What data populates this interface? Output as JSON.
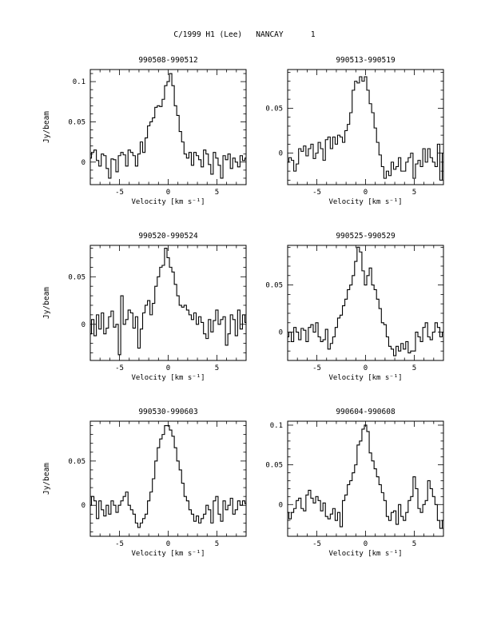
{
  "figure": {
    "title": "C/1999 H1 (Lee)   NANCAY      1",
    "ylabel": "Jy/beam"
  },
  "chart_data": [
    {
      "type": "line",
      "title": "990508-990512",
      "xlabel": "Velocity [km s⁻¹]",
      "ylabel": "Jy/beam",
      "xlim": [
        -8,
        8
      ],
      "ylim": [
        -0.028,
        0.115
      ],
      "xticks": [
        -5,
        0,
        5
      ],
      "yticks": [
        0,
        0.05,
        0.1
      ],
      "ytick_labels": [
        "0",
        "0.05",
        "0.1"
      ],
      "x": [
        -8,
        -7.75,
        -7.5,
        -7.25,
        -7,
        -6.75,
        -6.5,
        -6.25,
        -6,
        -5.75,
        -5.5,
        -5.25,
        -5,
        -4.75,
        -4.5,
        -4.25,
        -4,
        -3.75,
        -3.5,
        -3.25,
        -3,
        -2.75,
        -2.5,
        -2.25,
        -2,
        -1.75,
        -1.5,
        -1.25,
        -1,
        -0.75,
        -0.5,
        -0.25,
        0,
        0.25,
        0.5,
        0.75,
        1,
        1.25,
        1.5,
        1.75,
        2,
        2.25,
        2.5,
        2.75,
        3,
        3.25,
        3.5,
        3.75,
        4,
        4.25,
        4.5,
        4.75,
        5,
        5.25,
        5.5,
        5.75,
        6,
        6.25,
        6.5,
        6.75,
        7,
        7.25,
        7.5,
        7.75,
        8
      ],
      "values": [
        0.005,
        0.012,
        0.015,
        0.002,
        -0.005,
        0.01,
        0.008,
        -0.008,
        -0.02,
        0.004,
        0.003,
        -0.012,
        0.008,
        0.012,
        0.009,
        -0.005,
        0.015,
        0.012,
        0.008,
        -0.005,
        0.01,
        0.025,
        0.012,
        0.03,
        0.045,
        0.05,
        0.055,
        0.068,
        0.07,
        0.069,
        0.078,
        0.095,
        0.1,
        0.11,
        0.095,
        0.07,
        0.058,
        0.038,
        0.025,
        0.01,
        0.005,
        0.012,
        -0.004,
        0.012,
        0.008,
        0.003,
        -0.006,
        0.015,
        0.01,
        -0.003,
        -0.015,
        0.012,
        0.005,
        -0.004,
        -0.02,
        0.008,
        0.003,
        0.01,
        -0.008,
        0.005,
        0.0,
        -0.006,
        0.008,
        0.002,
        0.005
      ]
    },
    {
      "type": "line",
      "title": "990513-990519",
      "xlabel": "Velocity [km s⁻¹]",
      "ylabel": "",
      "xlim": [
        -8,
        8
      ],
      "ylim": [
        -0.035,
        0.093
      ],
      "xticks": [
        -5,
        0,
        5
      ],
      "yticks": [
        0,
        0.05
      ],
      "ytick_labels": [
        "0",
        "0.05"
      ],
      "x": [
        -8,
        -7.75,
        -7.5,
        -7.25,
        -7,
        -6.75,
        -6.5,
        -6.25,
        -6,
        -5.75,
        -5.5,
        -5.25,
        -5,
        -4.75,
        -4.5,
        -4.25,
        -4,
        -3.75,
        -3.5,
        -3.25,
        -3,
        -2.75,
        -2.5,
        -2.25,
        -2,
        -1.75,
        -1.5,
        -1.25,
        -1,
        -0.75,
        -0.5,
        -0.25,
        0,
        0.25,
        0.5,
        0.75,
        1,
        1.25,
        1.5,
        1.75,
        2,
        2.25,
        2.5,
        2.75,
        3,
        3.25,
        3.5,
        3.75,
        4,
        4.25,
        4.5,
        4.75,
        5,
        5.25,
        5.5,
        5.75,
        6,
        6.25,
        6.5,
        6.75,
        7,
        7.25,
        7.5,
        7.75,
        8
      ],
      "values": [
        -0.01,
        -0.005,
        -0.008,
        -0.02,
        -0.012,
        0.005,
        0.002,
        0.008,
        -0.003,
        0.005,
        0.01,
        -0.006,
        0.0,
        0.012,
        0.005,
        -0.008,
        0.015,
        0.018,
        0.005,
        0.018,
        0.01,
        0.02,
        0.018,
        0.012,
        0.025,
        0.032,
        0.045,
        0.07,
        0.08,
        0.078,
        0.085,
        0.08,
        0.085,
        0.07,
        0.055,
        0.045,
        0.028,
        0.012,
        -0.002,
        -0.015,
        -0.028,
        -0.02,
        -0.025,
        -0.01,
        -0.018,
        -0.015,
        -0.005,
        -0.02,
        -0.02,
        -0.01,
        -0.005,
        0.0,
        -0.028,
        -0.012,
        -0.008,
        -0.015,
        0.005,
        -0.01,
        0.005,
        -0.005,
        -0.01,
        -0.015,
        0.01,
        -0.03,
        0.0
      ]
    },
    {
      "type": "line",
      "title": "990520-990524",
      "xlabel": "Velocity [km s⁻¹]",
      "ylabel": "Jy/beam",
      "xlim": [
        -8,
        8
      ],
      "ylim": [
        -0.038,
        0.083
      ],
      "xticks": [
        -5,
        0,
        5
      ],
      "yticks": [
        0,
        0.05
      ],
      "ytick_labels": [
        "0",
        "0.05"
      ],
      "x": [
        -8,
        -7.75,
        -7.5,
        -7.25,
        -7,
        -6.75,
        -6.5,
        -6.25,
        -6,
        -5.75,
        -5.5,
        -5.25,
        -5,
        -4.75,
        -4.5,
        -4.25,
        -4,
        -3.75,
        -3.5,
        -3.25,
        -3,
        -2.75,
        -2.5,
        -2.25,
        -2,
        -1.75,
        -1.5,
        -1.25,
        -1,
        -0.75,
        -0.5,
        -0.25,
        0,
        0.25,
        0.5,
        0.75,
        1,
        1.25,
        1.5,
        1.75,
        2,
        2.25,
        2.5,
        2.75,
        3,
        3.25,
        3.5,
        3.75,
        4,
        4.25,
        4.5,
        4.75,
        5,
        5.25,
        5.5,
        5.75,
        6,
        6.25,
        6.5,
        6.75,
        7,
        7.25,
        7.5,
        7.75,
        8
      ],
      "values": [
        -0.01,
        0.005,
        -0.012,
        0.01,
        -0.005,
        0.012,
        -0.01,
        -0.004,
        0.008,
        0.014,
        -0.003,
        0.0,
        -0.032,
        0.03,
        0.0,
        0.005,
        0.015,
        0.012,
        -0.004,
        0.008,
        -0.025,
        -0.005,
        0.012,
        0.02,
        0.025,
        0.01,
        0.022,
        0.04,
        0.05,
        0.06,
        0.062,
        0.08,
        0.07,
        0.06,
        0.055,
        0.042,
        0.03,
        0.02,
        0.018,
        0.02,
        0.015,
        0.01,
        0.005,
        0.012,
        0.0,
        0.008,
        0.002,
        -0.01,
        -0.015,
        0.005,
        -0.008,
        0.004,
        0.015,
        0.0,
        0.005,
        0.008,
        -0.022,
        -0.01,
        0.01,
        0.005,
        -0.012,
        0.015,
        -0.005,
        0.01,
        0.002
      ]
    },
    {
      "type": "line",
      "title": "990525-990529",
      "xlabel": "Velocity [km s⁻¹]",
      "ylabel": "",
      "xlim": [
        -8,
        8
      ],
      "ylim": [
        -0.03,
        0.092
      ],
      "xticks": [
        -5,
        0,
        5
      ],
      "yticks": [
        0,
        0.05
      ],
      "ytick_labels": [
        "0",
        "0.05"
      ],
      "x": [
        -8,
        -7.75,
        -7.5,
        -7.25,
        -7,
        -6.75,
        -6.5,
        -6.25,
        -6,
        -5.75,
        -5.5,
        -5.25,
        -5,
        -4.75,
        -4.5,
        -4.25,
        -4,
        -3.75,
        -3.5,
        -3.25,
        -3,
        -2.75,
        -2.5,
        -2.25,
        -2,
        -1.75,
        -1.5,
        -1.25,
        -1,
        -0.75,
        -0.5,
        -0.25,
        0,
        0.25,
        0.5,
        0.75,
        1,
        1.25,
        1.5,
        1.75,
        2,
        2.25,
        2.5,
        2.75,
        3,
        3.25,
        3.5,
        3.75,
        4,
        4.25,
        4.5,
        4.75,
        5,
        5.25,
        5.5,
        5.75,
        6,
        6.25,
        6.5,
        6.75,
        7,
        7.25,
        7.5,
        7.75,
        8
      ],
      "values": [
        -0.005,
        0.0,
        -0.01,
        0.005,
        0.0,
        -0.008,
        0.004,
        0.002,
        -0.01,
        0.005,
        0.008,
        0.0,
        0.01,
        -0.005,
        -0.01,
        -0.008,
        0.003,
        -0.018,
        -0.012,
        -0.005,
        0.005,
        0.015,
        0.018,
        0.028,
        0.035,
        0.045,
        0.05,
        0.06,
        0.075,
        0.09,
        0.085,
        0.065,
        0.05,
        0.06,
        0.068,
        0.05,
        0.045,
        0.035,
        0.025,
        0.01,
        0.008,
        -0.005,
        -0.015,
        -0.018,
        -0.025,
        -0.015,
        -0.02,
        -0.012,
        -0.018,
        -0.01,
        -0.022,
        -0.02,
        -0.02,
        0.0,
        -0.005,
        -0.01,
        0.005,
        0.01,
        -0.005,
        -0.008,
        0.0,
        0.01,
        0.005,
        -0.005,
        0.0
      ]
    },
    {
      "type": "line",
      "title": "990530-990603",
      "xlabel": "Velocity [km s⁻¹]",
      "ylabel": "Jy/beam",
      "xlim": [
        -8,
        8
      ],
      "ylim": [
        -0.035,
        0.095
      ],
      "xticks": [
        -5,
        0,
        5
      ],
      "yticks": [
        0,
        0.05
      ],
      "ytick_labels": [
        "0",
        "0.05"
      ],
      "x": [
        -8,
        -7.75,
        -7.5,
        -7.25,
        -7,
        -6.75,
        -6.5,
        -6.25,
        -6,
        -5.75,
        -5.5,
        -5.25,
        -5,
        -4.75,
        -4.5,
        -4.25,
        -4,
        -3.75,
        -3.5,
        -3.25,
        -3,
        -2.75,
        -2.5,
        -2.25,
        -2,
        -1.75,
        -1.5,
        -1.25,
        -1,
        -0.75,
        -0.5,
        -0.25,
        0,
        0.25,
        0.5,
        0.75,
        1,
        1.25,
        1.5,
        1.75,
        2,
        2.25,
        2.5,
        2.75,
        3,
        3.25,
        3.5,
        3.75,
        4,
        4.25,
        4.5,
        4.75,
        5,
        5.25,
        5.5,
        5.75,
        6,
        6.25,
        6.5,
        6.75,
        7,
        7.25,
        7.5,
        7.75,
        8
      ],
      "values": [
        0.0,
        0.01,
        0.005,
        -0.015,
        0.005,
        -0.005,
        -0.012,
        0.0,
        -0.01,
        0.005,
        0.0,
        -0.008,
        0.0,
        0.005,
        0.01,
        0.015,
        0.0,
        -0.005,
        -0.01,
        -0.02,
        -0.025,
        -0.02,
        -0.015,
        -0.01,
        0.005,
        0.015,
        0.03,
        0.05,
        0.065,
        0.075,
        0.08,
        0.09,
        0.09,
        0.085,
        0.078,
        0.065,
        0.05,
        0.04,
        0.025,
        0.01,
        0.005,
        -0.005,
        -0.01,
        -0.018,
        -0.012,
        -0.02,
        -0.015,
        -0.01,
        0.0,
        -0.005,
        -0.02,
        0.005,
        0.01,
        -0.01,
        -0.018,
        0.005,
        -0.005,
        0.0,
        0.008,
        -0.01,
        -0.005,
        0.005,
        0.0,
        0.005,
        0.002
      ]
    },
    {
      "type": "line",
      "title": "990604-990608",
      "xlabel": "Velocity [km s⁻¹]",
      "ylabel": "",
      "xlim": [
        -8,
        8
      ],
      "ylim": [
        -0.04,
        0.105
      ],
      "xticks": [
        -5,
        0,
        5
      ],
      "yticks": [
        0,
        0.05,
        0.1
      ],
      "ytick_labels": [
        "0",
        "0.05",
        "0.1"
      ],
      "x": [
        -8,
        -7.75,
        -7.5,
        -7.25,
        -7,
        -6.75,
        -6.5,
        -6.25,
        -6,
        -5.75,
        -5.5,
        -5.25,
        -5,
        -4.75,
        -4.5,
        -4.25,
        -4,
        -3.75,
        -3.5,
        -3.25,
        -3,
        -2.75,
        -2.5,
        -2.25,
        -2,
        -1.75,
        -1.5,
        -1.25,
        -1,
        -0.75,
        -0.5,
        -0.25,
        0,
        0.25,
        0.5,
        0.75,
        1,
        1.25,
        1.5,
        1.75,
        2,
        2.25,
        2.5,
        2.75,
        3,
        3.25,
        3.5,
        3.75,
        4,
        4.25,
        4.5,
        4.75,
        5,
        5.25,
        5.5,
        5.75,
        6,
        6.25,
        6.5,
        6.75,
        7,
        7.25,
        7.5,
        7.75,
        8
      ],
      "values": [
        -0.01,
        -0.018,
        -0.01,
        -0.005,
        0.005,
        0.008,
        -0.005,
        -0.008,
        0.012,
        0.018,
        0.008,
        0.002,
        0.01,
        0.005,
        -0.008,
        0.002,
        -0.015,
        -0.018,
        -0.012,
        -0.005,
        -0.02,
        -0.01,
        -0.028,
        0.005,
        0.012,
        0.025,
        0.03,
        0.04,
        0.05,
        0.075,
        0.08,
        0.095,
        0.1,
        0.092,
        0.065,
        0.055,
        0.045,
        0.035,
        0.025,
        0.015,
        0.005,
        -0.015,
        -0.02,
        -0.01,
        -0.008,
        -0.025,
        0.0,
        -0.015,
        -0.02,
        -0.01,
        0.005,
        0.01,
        0.035,
        0.02,
        -0.005,
        -0.01,
        0.0,
        0.005,
        0.03,
        0.02,
        0.01,
        0.0,
        -0.02,
        -0.03,
        -0.02
      ]
    }
  ]
}
